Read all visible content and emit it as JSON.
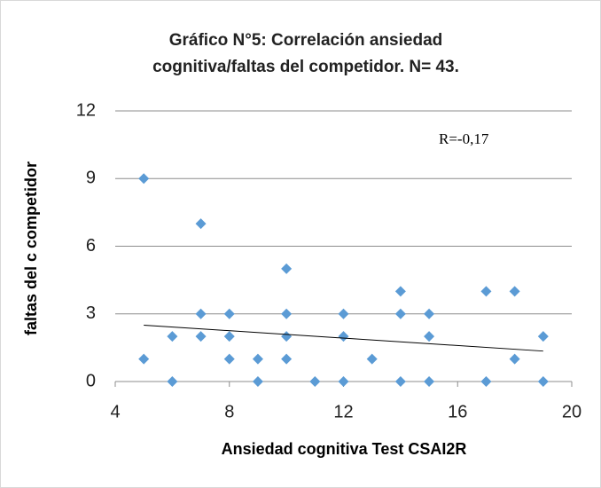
{
  "chart_data": {
    "type": "scatter",
    "title": [
      "Gráfico N°5: Correlación ansiedad",
      "cognitiva/faltas del competidor. N= 43."
    ],
    "xlabel": "Ansiedad cognitiva Test CSAI2R",
    "ylabel": "faltas  del c competidor",
    "annotation": "R=-0,17",
    "color": "#5b9bd5",
    "x": [
      5,
      5,
      6,
      6,
      7,
      7,
      7,
      8,
      8,
      8,
      9,
      9,
      10,
      10,
      10,
      10,
      11,
      12,
      12,
      12,
      13,
      14,
      14,
      14,
      15,
      15,
      15,
      17,
      17,
      18,
      18,
      19,
      19
    ],
    "values": [
      9,
      1,
      2,
      0,
      7,
      3,
      2,
      3,
      2,
      1,
      1,
      0,
      5,
      3,
      2,
      1,
      0,
      3,
      2,
      0,
      1,
      4,
      3,
      0,
      3,
      2,
      0,
      4,
      0,
      4,
      1,
      2,
      0
    ],
    "trendline": {
      "x": [
        5,
        19
      ],
      "y": [
        2.5,
        1.35
      ]
    },
    "xlim": [
      4,
      20
    ],
    "xticks": [
      4,
      8,
      12,
      16,
      20
    ],
    "ylim": [
      0,
      12
    ],
    "yticks": [
      0,
      3,
      6,
      9,
      12
    ],
    "grid": true
  }
}
